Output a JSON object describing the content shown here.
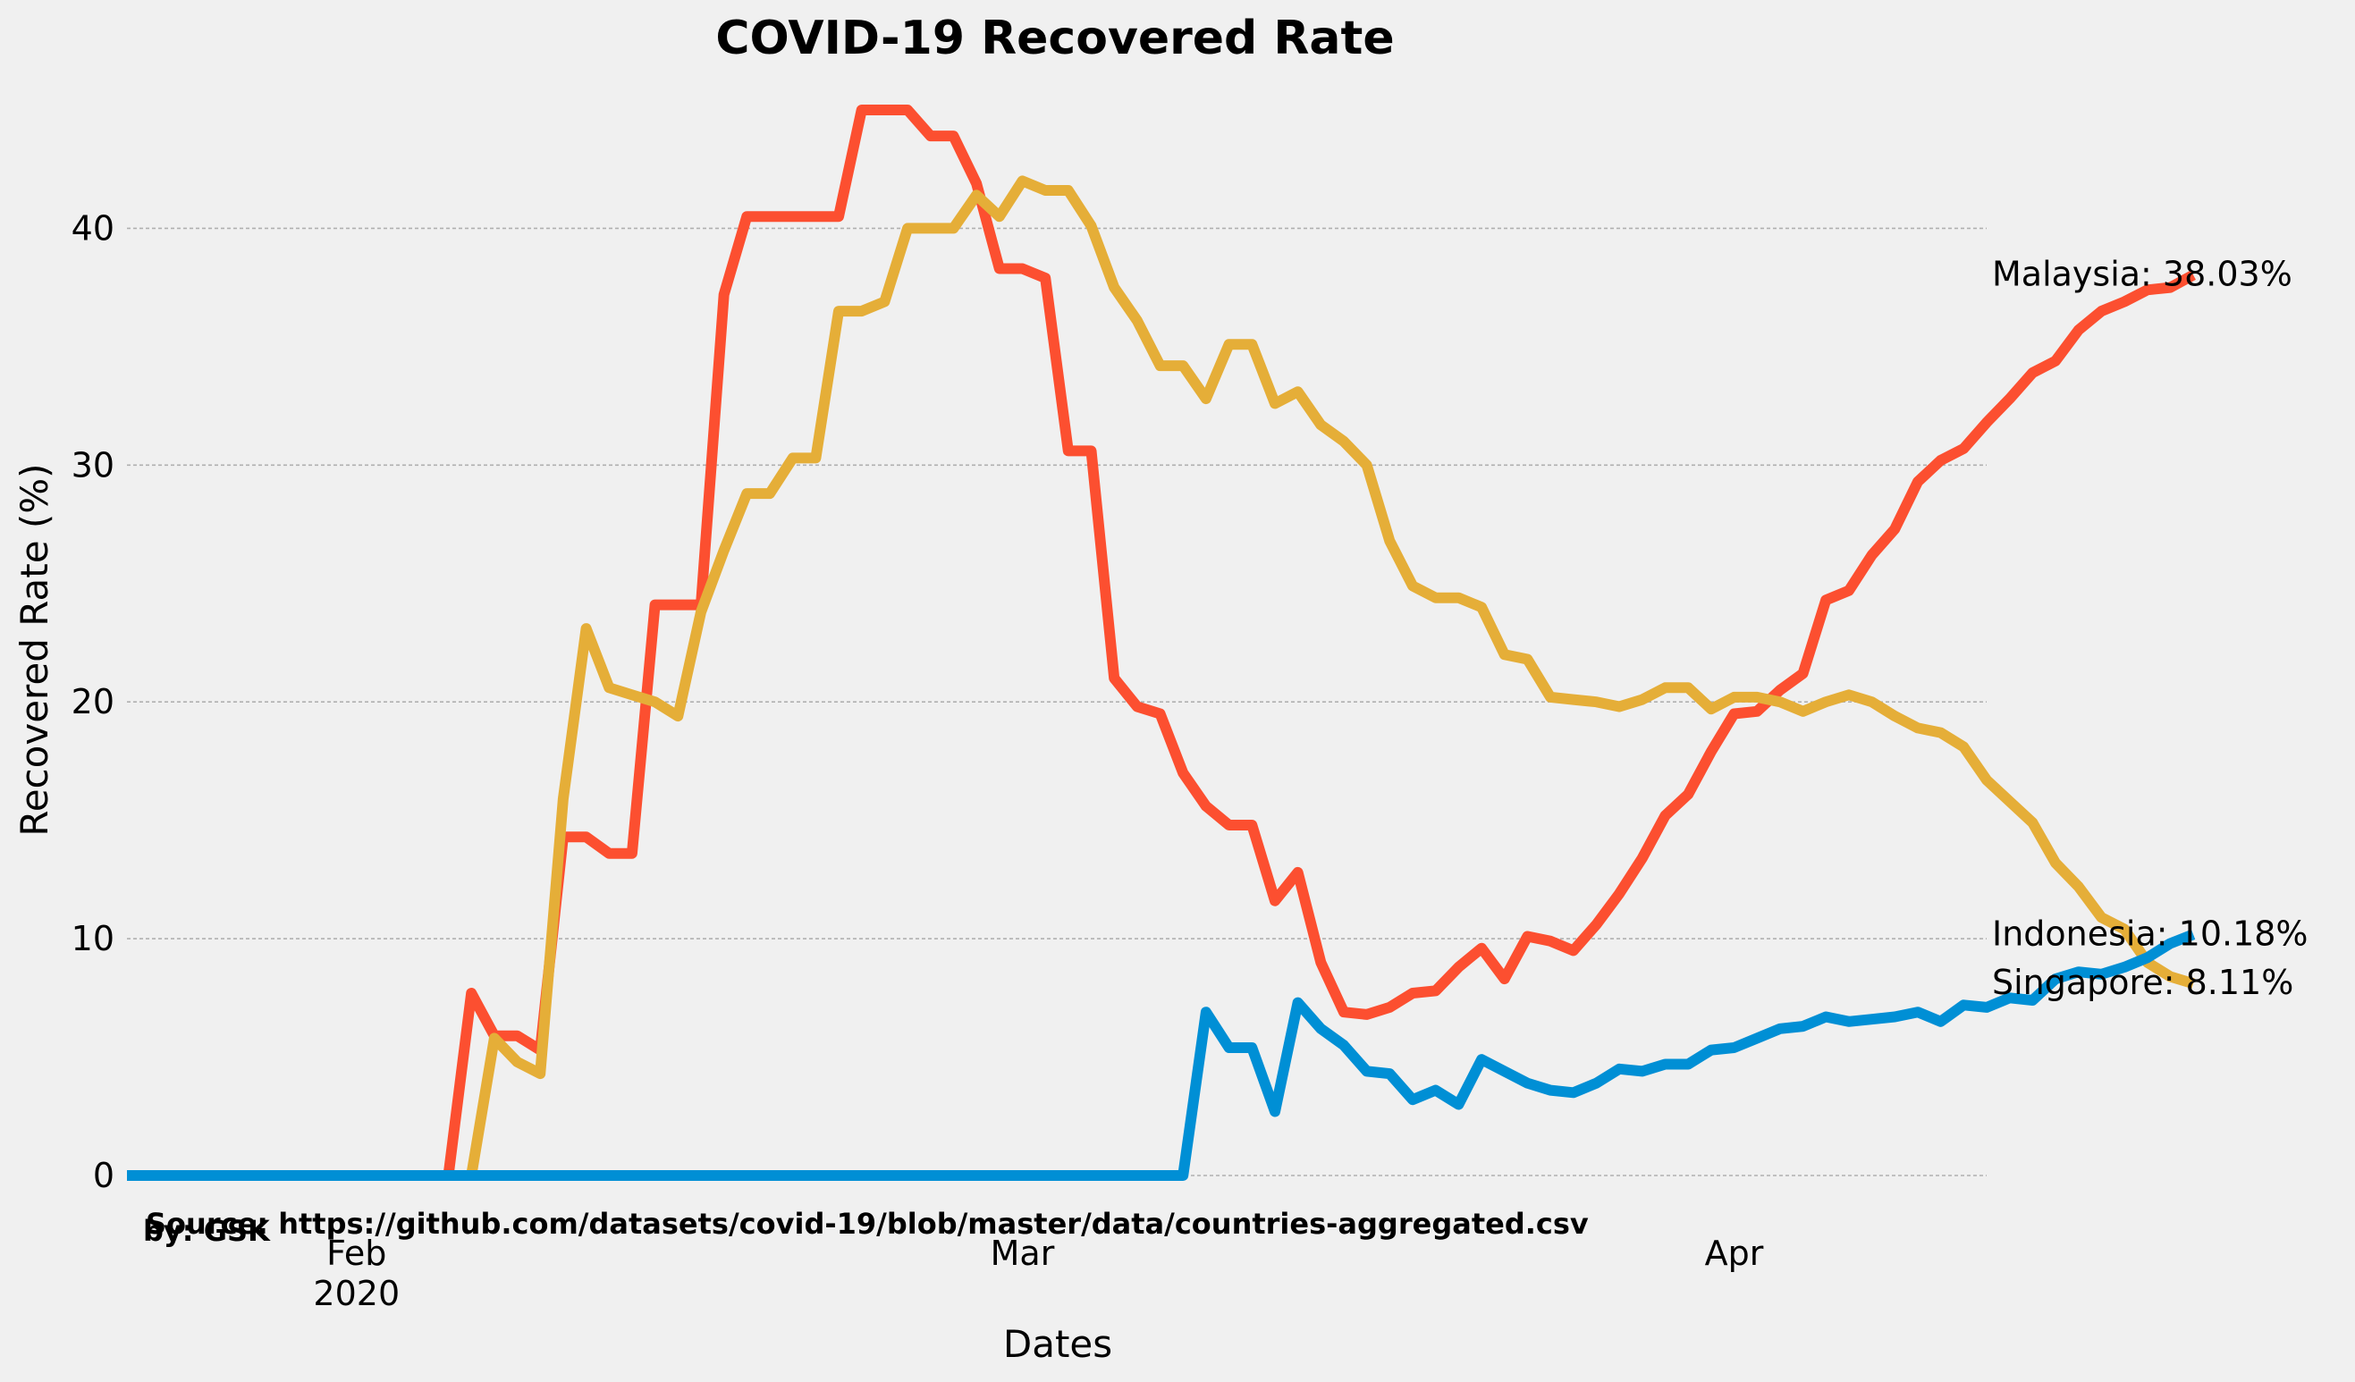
{
  "chart_data": {
    "type": "line",
    "title": "COVID-19 Recovered Rate",
    "xlabel": "Dates",
    "ylabel": "Recovered Rate (%)",
    "x_start": "2020-01-22",
    "x_end": "2020-04-12",
    "xlim": [
      "2020-01-22",
      "2020-04-12"
    ],
    "ylim": [
      0,
      47
    ],
    "grid": "horizontal dashed",
    "x_ticks": [
      {
        "date": "2020-02-01",
        "label": "Feb",
        "sublabel": "2020"
      },
      {
        "date": "2020-03-01",
        "label": "Mar",
        "sublabel": ""
      },
      {
        "date": "2020-04-01",
        "label": "Apr",
        "sublabel": ""
      }
    ],
    "y_ticks": [
      {
        "value": 0,
        "label": "0"
      },
      {
        "value": 10,
        "label": "10"
      },
      {
        "value": 20,
        "label": "20"
      },
      {
        "value": 30,
        "label": "30"
      },
      {
        "value": 40,
        "label": "40"
      }
    ],
    "series": [
      {
        "name": "Malaysia",
        "color": "#fc4f30",
        "end_label": "Malaysia: 38.03%",
        "values": [
          0,
          0,
          0,
          0,
          0,
          0,
          0,
          0,
          0,
          0,
          0,
          0,
          0,
          0,
          0,
          7.7,
          5.9,
          5.9,
          5.3,
          14.3,
          14.3,
          13.6,
          13.6,
          24.1,
          24.1,
          24.1,
          37.2,
          40.5,
          40.5,
          40.5,
          40.5,
          40.5,
          45.0,
          45.0,
          45.0,
          43.9,
          43.9,
          41.9,
          38.3,
          38.3,
          37.9,
          30.6,
          30.6,
          21.0,
          19.8,
          19.5,
          17.0,
          15.6,
          14.8,
          14.8,
          11.6,
          12.8,
          9.0,
          6.9,
          6.8,
          7.1,
          7.7,
          7.8,
          8.8,
          9.6,
          8.3,
          10.1,
          9.9,
          9.5,
          10.6,
          11.9,
          13.4,
          15.2,
          16.1,
          17.9,
          19.5,
          19.6,
          20.5,
          21.2,
          24.3,
          24.7,
          26.2,
          27.3,
          29.3,
          30.2,
          30.7,
          31.8,
          32.8,
          33.9,
          34.4,
          35.7,
          36.5,
          36.9,
          37.4,
          37.5,
          38.03
        ]
      },
      {
        "name": "Singapore",
        "color": "#e5ae38",
        "end_label": "Singapore: 8.11%",
        "values": [
          0,
          0,
          0,
          0,
          0,
          0,
          0,
          0,
          0,
          0,
          0,
          0,
          0,
          0,
          0,
          0,
          5.8,
          4.8,
          4.3,
          15.9,
          23.1,
          20.6,
          20.3,
          20.0,
          19.4,
          23.8,
          26.4,
          28.8,
          28.8,
          30.3,
          30.3,
          36.5,
          36.5,
          36.9,
          40.0,
          40.0,
          40.0,
          41.4,
          40.5,
          42.0,
          41.6,
          41.6,
          40.1,
          37.5,
          36.1,
          34.2,
          34.2,
          32.8,
          35.1,
          35.1,
          32.6,
          33.1,
          31.7,
          31.0,
          30.0,
          26.8,
          24.9,
          24.4,
          24.4,
          24.0,
          22.0,
          21.8,
          20.2,
          20.1,
          20.0,
          19.8,
          20.1,
          20.6,
          20.6,
          19.7,
          20.2,
          20.2,
          20.0,
          19.6,
          20.0,
          20.3,
          20.0,
          19.4,
          18.9,
          18.7,
          18.1,
          16.7,
          15.8,
          14.9,
          13.2,
          12.2,
          10.9,
          10.4,
          9.0,
          8.4,
          8.11
        ]
      },
      {
        "name": "Indonesia",
        "color": "#008fd5",
        "end_label": "Indonesia: 10.18%",
        "values": [
          0,
          0,
          0,
          0,
          0,
          0,
          0,
          0,
          0,
          0,
          0,
          0,
          0,
          0,
          0,
          0,
          0,
          0,
          0,
          0,
          0,
          0,
          0,
          0,
          0,
          0,
          0,
          0,
          0,
          0,
          0,
          0,
          0,
          0,
          0,
          0,
          0,
          0,
          0,
          0,
          0,
          0,
          0,
          0,
          0,
          0,
          0,
          6.9,
          5.4,
          5.4,
          2.7,
          7.3,
          6.2,
          5.5,
          4.4,
          4.3,
          3.2,
          3.6,
          3.0,
          4.9,
          4.4,
          3.9,
          3.6,
          3.5,
          3.9,
          4.5,
          4.4,
          4.7,
          4.7,
          5.3,
          5.4,
          5.8,
          6.2,
          6.3,
          6.7,
          6.5,
          6.6,
          6.7,
          6.9,
          6.5,
          7.2,
          7.1,
          7.5,
          7.4,
          8.3,
          8.6,
          8.5,
          8.8,
          9.2,
          9.8,
          10.18
        ]
      }
    ],
    "annotations": {
      "source": "Source: https://github.com/datasets/covid-19/blob/master/data/countries-aggregated.csv",
      "author": "by: GSK"
    }
  }
}
